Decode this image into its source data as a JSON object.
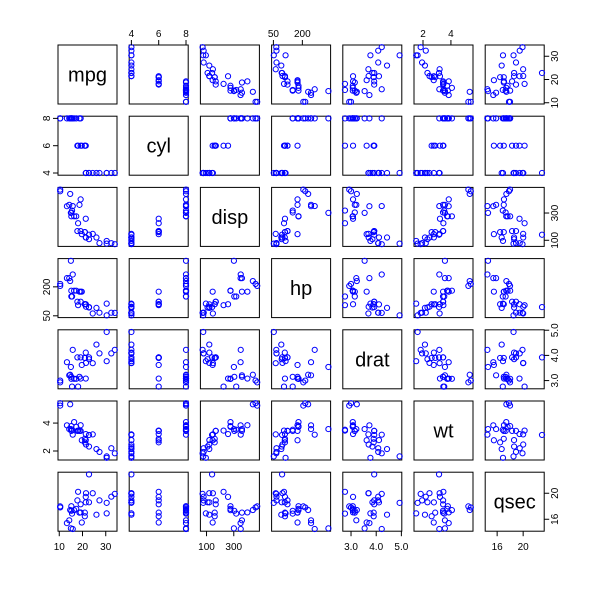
{
  "chart_data": {
    "type": "scatter-matrix",
    "title": "",
    "point_color": "#0000ff",
    "point_style": "open-circle",
    "variables": [
      "mpg",
      "cyl",
      "disp",
      "hp",
      "drat",
      "wt",
      "qsec"
    ],
    "ranges": {
      "mpg": [
        10.4,
        33.9
      ],
      "cyl": [
        4,
        8
      ],
      "disp": [
        71.1,
        472
      ],
      "hp": [
        52,
        335
      ],
      "drat": [
        2.76,
        4.93
      ],
      "wt": [
        1.513,
        5.424
      ],
      "qsec": [
        14.5,
        22.9
      ]
    },
    "ticks": {
      "mpg": [
        "10",
        "20",
        "30"
      ],
      "cyl": [
        "4",
        "6",
        "8"
      ],
      "disp": [
        "100",
        "300"
      ],
      "hp": [
        "50",
        "200"
      ],
      "drat": [
        "3.0",
        "4.0",
        "5.0"
      ],
      "wt": [
        "2",
        "4"
      ],
      "qsec": [
        "16",
        "20"
      ]
    },
    "tick_values": {
      "mpg": [
        10,
        20,
        30
      ],
      "cyl": [
        4,
        6,
        8
      ],
      "disp": [
        100,
        300
      ],
      "hp": [
        50,
        200
      ],
      "drat": [
        3.0,
        4.0,
        5.0
      ],
      "wt": [
        2,
        4
      ],
      "qsec": [
        16,
        20
      ]
    },
    "observations": [
      {
        "mpg": 21.0,
        "cyl": 6,
        "disp": 160.0,
        "hp": 110,
        "drat": 3.9,
        "wt": 2.62,
        "qsec": 16.46
      },
      {
        "mpg": 21.0,
        "cyl": 6,
        "disp": 160.0,
        "hp": 110,
        "drat": 3.9,
        "wt": 2.875,
        "qsec": 17.02
      },
      {
        "mpg": 22.8,
        "cyl": 4,
        "disp": 108.0,
        "hp": 93,
        "drat": 3.85,
        "wt": 2.32,
        "qsec": 18.61
      },
      {
        "mpg": 21.4,
        "cyl": 6,
        "disp": 258.0,
        "hp": 110,
        "drat": 3.08,
        "wt": 3.215,
        "qsec": 19.44
      },
      {
        "mpg": 18.7,
        "cyl": 8,
        "disp": 360.0,
        "hp": 175,
        "drat": 3.15,
        "wt": 3.44,
        "qsec": 17.02
      },
      {
        "mpg": 18.1,
        "cyl": 6,
        "disp": 225.0,
        "hp": 105,
        "drat": 2.76,
        "wt": 3.46,
        "qsec": 20.22
      },
      {
        "mpg": 14.3,
        "cyl": 8,
        "disp": 360.0,
        "hp": 245,
        "drat": 3.21,
        "wt": 3.57,
        "qsec": 15.84
      },
      {
        "mpg": 24.4,
        "cyl": 4,
        "disp": 146.7,
        "hp": 62,
        "drat": 3.69,
        "wt": 3.19,
        "qsec": 20.0
      },
      {
        "mpg": 22.8,
        "cyl": 4,
        "disp": 140.8,
        "hp": 95,
        "drat": 3.92,
        "wt": 3.15,
        "qsec": 22.9
      },
      {
        "mpg": 19.2,
        "cyl": 6,
        "disp": 167.6,
        "hp": 123,
        "drat": 3.92,
        "wt": 3.44,
        "qsec": 18.3
      },
      {
        "mpg": 17.8,
        "cyl": 6,
        "disp": 167.6,
        "hp": 123,
        "drat": 3.92,
        "wt": 3.44,
        "qsec": 18.9
      },
      {
        "mpg": 16.4,
        "cyl": 8,
        "disp": 275.8,
        "hp": 180,
        "drat": 3.07,
        "wt": 4.07,
        "qsec": 17.4
      },
      {
        "mpg": 17.3,
        "cyl": 8,
        "disp": 275.8,
        "hp": 180,
        "drat": 3.07,
        "wt": 3.73,
        "qsec": 17.6
      },
      {
        "mpg": 15.2,
        "cyl": 8,
        "disp": 275.8,
        "hp": 180,
        "drat": 3.07,
        "wt": 3.78,
        "qsec": 18.0
      },
      {
        "mpg": 10.4,
        "cyl": 8,
        "disp": 472.0,
        "hp": 205,
        "drat": 2.93,
        "wt": 5.25,
        "qsec": 17.98
      },
      {
        "mpg": 10.4,
        "cyl": 8,
        "disp": 460.0,
        "hp": 215,
        "drat": 3.0,
        "wt": 5.424,
        "qsec": 17.82
      },
      {
        "mpg": 14.7,
        "cyl": 8,
        "disp": 440.0,
        "hp": 230,
        "drat": 3.23,
        "wt": 5.345,
        "qsec": 17.42
      },
      {
        "mpg": 32.4,
        "cyl": 4,
        "disp": 78.7,
        "hp": 66,
        "drat": 4.08,
        "wt": 2.2,
        "qsec": 19.47
      },
      {
        "mpg": 30.4,
        "cyl": 4,
        "disp": 75.7,
        "hp": 52,
        "drat": 4.93,
        "wt": 1.615,
        "qsec": 18.52
      },
      {
        "mpg": 33.9,
        "cyl": 4,
        "disp": 71.1,
        "hp": 65,
        "drat": 4.22,
        "wt": 1.835,
        "qsec": 19.9
      },
      {
        "mpg": 21.5,
        "cyl": 4,
        "disp": 120.1,
        "hp": 97,
        "drat": 3.7,
        "wt": 2.465,
        "qsec": 20.01
      },
      {
        "mpg": 15.5,
        "cyl": 8,
        "disp": 318.0,
        "hp": 150,
        "drat": 2.76,
        "wt": 3.52,
        "qsec": 16.87
      },
      {
        "mpg": 15.2,
        "cyl": 8,
        "disp": 304.0,
        "hp": 150,
        "drat": 3.15,
        "wt": 3.435,
        "qsec": 17.3
      },
      {
        "mpg": 13.3,
        "cyl": 8,
        "disp": 350.0,
        "hp": 245,
        "drat": 3.73,
        "wt": 3.84,
        "qsec": 15.41
      },
      {
        "mpg": 19.2,
        "cyl": 8,
        "disp": 400.0,
        "hp": 175,
        "drat": 3.08,
        "wt": 3.845,
        "qsec": 17.05
      },
      {
        "mpg": 27.3,
        "cyl": 4,
        "disp": 79.0,
        "hp": 66,
        "drat": 4.08,
        "wt": 1.935,
        "qsec": 18.9
      },
      {
        "mpg": 26.0,
        "cyl": 4,
        "disp": 120.3,
        "hp": 91,
        "drat": 4.43,
        "wt": 2.14,
        "qsec": 16.7
      },
      {
        "mpg": 30.4,
        "cyl": 4,
        "disp": 95.1,
        "hp": 113,
        "drat": 3.77,
        "wt": 1.513,
        "qsec": 16.9
      },
      {
        "mpg": 15.8,
        "cyl": 8,
        "disp": 351.0,
        "hp": 264,
        "drat": 4.22,
        "wt": 3.17,
        "qsec": 14.5
      },
      {
        "mpg": 19.7,
        "cyl": 6,
        "disp": 145.0,
        "hp": 175,
        "drat": 3.62,
        "wt": 2.77,
        "qsec": 15.5
      },
      {
        "mpg": 15.0,
        "cyl": 8,
        "disp": 301.0,
        "hp": 335,
        "drat": 3.54,
        "wt": 3.57,
        "qsec": 14.6
      },
      {
        "mpg": 21.4,
        "cyl": 4,
        "disp": 121.0,
        "hp": 109,
        "drat": 4.11,
        "wt": 2.78,
        "qsec": 18.6
      }
    ]
  }
}
